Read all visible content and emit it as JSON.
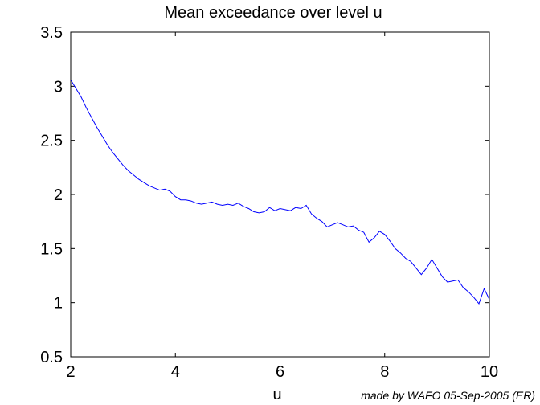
{
  "chart_data": {
    "type": "line",
    "title": "Mean exceedance over level u",
    "xlabel": "u",
    "ylabel": "",
    "xlim": [
      2,
      10
    ],
    "ylim": [
      0.5,
      3.5
    ],
    "xticks": [
      2,
      4,
      6,
      8,
      10
    ],
    "xtick_labels": [
      "2",
      "4",
      "6",
      "8",
      "10"
    ],
    "yticks": [
      0.5,
      1,
      1.5,
      2,
      2.5,
      3,
      3.5
    ],
    "ytick_labels": [
      "0.5",
      "1",
      "1.5",
      "2",
      "2.5",
      "3",
      "3.5"
    ],
    "grid": false,
    "line_color": "#0000ff",
    "series": [
      {
        "x": [
          2.0,
          2.1,
          2.2,
          2.3,
          2.4,
          2.5,
          2.6,
          2.7,
          2.8,
          2.9,
          3.0,
          3.1,
          3.2,
          3.3,
          3.4,
          3.5,
          3.6,
          3.7,
          3.8,
          3.9,
          4.0,
          4.1,
          4.2,
          4.3,
          4.4,
          4.5,
          4.6,
          4.7,
          4.8,
          4.9,
          5.0,
          5.1,
          5.2,
          5.3,
          5.4,
          5.5,
          5.6,
          5.7,
          5.8,
          5.9,
          6.0,
          6.1,
          6.2,
          6.3,
          6.4,
          6.5,
          6.6,
          6.7,
          6.8,
          6.9,
          7.0,
          7.1,
          7.2,
          7.3,
          7.4,
          7.5,
          7.6,
          7.7,
          7.8,
          7.9,
          8.0,
          8.1,
          8.2,
          8.3,
          8.4,
          8.5,
          8.6,
          8.7,
          8.8,
          8.9,
          9.0,
          9.1,
          9.2,
          9.3,
          9.4,
          9.5,
          9.6,
          9.7,
          9.8,
          9.9,
          10.0
        ],
        "values": [
          3.06,
          2.98,
          2.9,
          2.8,
          2.71,
          2.62,
          2.54,
          2.46,
          2.39,
          2.33,
          2.27,
          2.22,
          2.18,
          2.14,
          2.11,
          2.08,
          2.06,
          2.04,
          2.05,
          2.03,
          1.98,
          1.95,
          1.95,
          1.94,
          1.92,
          1.91,
          1.92,
          1.93,
          1.91,
          1.9,
          1.91,
          1.9,
          1.92,
          1.89,
          1.87,
          1.84,
          1.83,
          1.84,
          1.88,
          1.85,
          1.87,
          1.86,
          1.85,
          1.88,
          1.87,
          1.9,
          1.82,
          1.78,
          1.75,
          1.7,
          1.72,
          1.74,
          1.72,
          1.7,
          1.71,
          1.67,
          1.65,
          1.56,
          1.6,
          1.66,
          1.63,
          1.57,
          1.5,
          1.46,
          1.41,
          1.38,
          1.32,
          1.26,
          1.32,
          1.4,
          1.32,
          1.24,
          1.19,
          1.2,
          1.21,
          1.14,
          1.1,
          1.05,
          0.99,
          1.13,
          1.03
        ]
      }
    ]
  },
  "footer": {
    "note": "made by WAFO 05-Sep-2005 (ER)"
  }
}
